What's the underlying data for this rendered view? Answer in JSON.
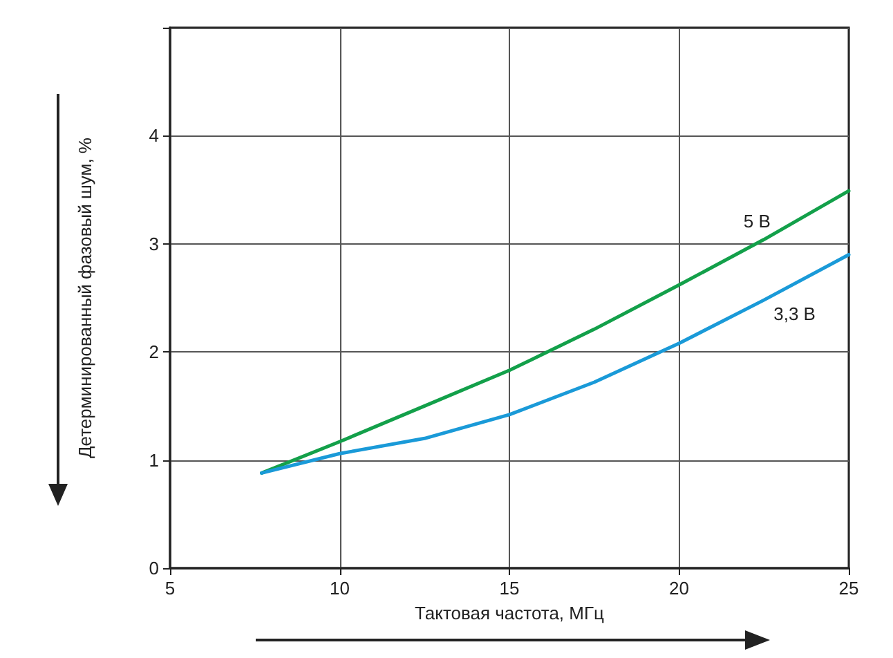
{
  "chart_data": {
    "type": "line",
    "xlabel": "Тактовая частота, МГц",
    "ylabel": "Детерминированный фазовый шум, %",
    "xlim": [
      5,
      25
    ],
    "xticks": [
      5,
      10,
      15,
      20,
      25
    ],
    "ylim": [
      0,
      5
    ],
    "yticks": [
      0,
      1,
      2,
      3,
      4,
      {
        "value": 5,
        "label": null
      }
    ],
    "grid": true,
    "legend": false,
    "marker": "none",
    "line_style": "solid",
    "series": [
      {
        "name": "5 В",
        "color": "#13a04a",
        "x": [
          7.7,
          10,
          12.5,
          15,
          17.5,
          20,
          22.5,
          25
        ],
        "values": [
          0.88,
          1.17,
          1.5,
          1.83,
          2.21,
          2.62,
          3.04,
          3.49
        ]
      },
      {
        "name": "3,3 В",
        "color": "#1a9ad8",
        "x": [
          7.7,
          10,
          12.5,
          15,
          17.5,
          20,
          22.5,
          25
        ],
        "values": [
          0.88,
          1.06,
          1.2,
          1.42,
          1.72,
          2.08,
          2.48,
          2.9
        ]
      }
    ]
  }
}
